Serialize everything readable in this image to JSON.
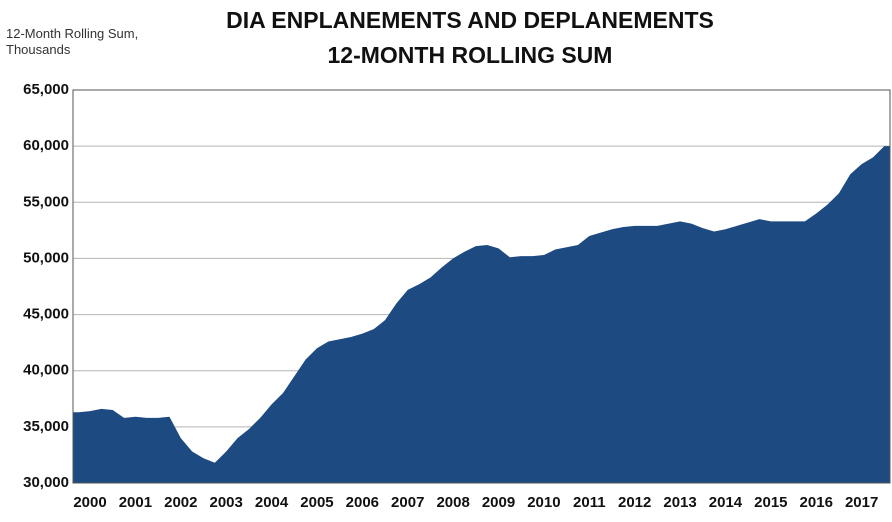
{
  "chart_data": {
    "type": "area",
    "title": "DIA ENPLANEMENTS AND DEPLANEMENTS",
    "subtitle": "12-MONTH ROLLING SUM",
    "y_label": "12-Month Rolling Sum, Thousands",
    "color": "#1d4a80",
    "grid": true,
    "ylim": [
      30000,
      65000
    ],
    "yticks": [
      {
        "value": 30000,
        "label": "30,000"
      },
      {
        "value": 35000,
        "label": "35,000"
      },
      {
        "value": 40000,
        "label": "40,000"
      },
      {
        "value": 45000,
        "label": "45,000"
      },
      {
        "value": 50000,
        "label": "50,000"
      },
      {
        "value": 55000,
        "label": "55,000"
      },
      {
        "value": 60000,
        "label": "60,000"
      },
      {
        "value": 65000,
        "label": "65,000"
      }
    ],
    "categories": [
      null,
      "2000",
      null,
      null,
      null,
      "2001",
      null,
      null,
      null,
      "2002",
      null,
      null,
      null,
      "2003",
      null,
      null,
      null,
      "2004",
      null,
      null,
      null,
      "2005",
      null,
      null,
      null,
      "2006",
      null,
      null,
      null,
      "2007",
      null,
      null,
      null,
      "2008",
      null,
      null,
      null,
      "2009",
      null,
      null,
      null,
      "2010",
      null,
      null,
      null,
      "2011",
      null,
      null,
      null,
      "2012",
      null,
      null,
      null,
      "2013",
      null,
      null,
      null,
      "2014",
      null,
      null,
      null,
      "2015",
      null,
      null,
      null,
      "2016",
      null,
      null,
      null,
      "2017",
      null,
      null
    ],
    "values": [
      36300,
      36400,
      36600,
      36500,
      35800,
      35900,
      35800,
      35800,
      35900,
      34000,
      32800,
      32200,
      31800,
      32800,
      34000,
      34800,
      35800,
      37000,
      38000,
      39500,
      41000,
      42000,
      42600,
      42800,
      43000,
      43300,
      43700,
      44500,
      46000,
      47200,
      47700,
      48300,
      49200,
      50000,
      50600,
      51100,
      51200,
      50900,
      50100,
      50200,
      50200,
      50300,
      50800,
      51000,
      51200,
      52000,
      52300,
      52600,
      52800,
      52900,
      52900,
      52900,
      53100,
      53300,
      53100,
      52700,
      52400,
      52600,
      52900,
      53200,
      53500,
      53300,
      53300,
      53300,
      53300,
      54000,
      54800,
      55800,
      57500,
      58400,
      59000,
      60000
    ]
  }
}
